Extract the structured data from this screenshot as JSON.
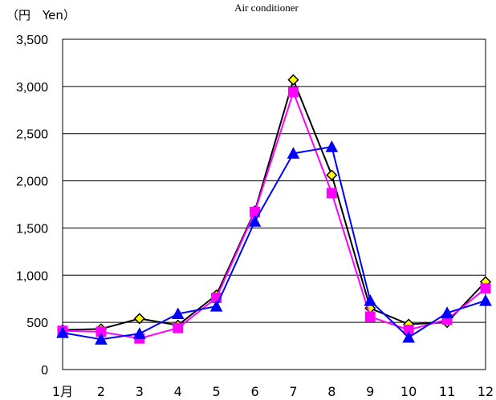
{
  "chart_data": {
    "type": "line",
    "title": "Air conditioner",
    "unit_label": "（円　Yen）",
    "categories": [
      "1月",
      "2",
      "3",
      "4",
      "5",
      "6",
      "7",
      "8",
      "9",
      "10",
      "11",
      "12"
    ],
    "yticks": [
      "0",
      "500",
      "1,000",
      "1,500",
      "2,000",
      "2,500",
      "3,000",
      "3,500"
    ],
    "ylim": [
      0,
      3500
    ],
    "grid": true,
    "series": [
      {
        "color": "#000000",
        "marker": "diamond",
        "marker_fill": "#ffff00",
        "values": [
          420,
          430,
          540,
          470,
          790,
          1680,
          3070,
          2060,
          650,
          480,
          500,
          930
        ]
      },
      {
        "color": "#ff00ff",
        "marker": "square",
        "marker_fill": "#ff00ff",
        "values": [
          410,
          400,
          330,
          440,
          760,
          1670,
          2940,
          1870,
          560,
          420,
          530,
          860
        ]
      },
      {
        "color": "#0000ff",
        "marker": "triangle",
        "marker_fill": "#0000ff",
        "values": [
          390,
          320,
          380,
          590,
          670,
          1570,
          2290,
          2360,
          730,
          340,
          600,
          730
        ]
      }
    ]
  }
}
